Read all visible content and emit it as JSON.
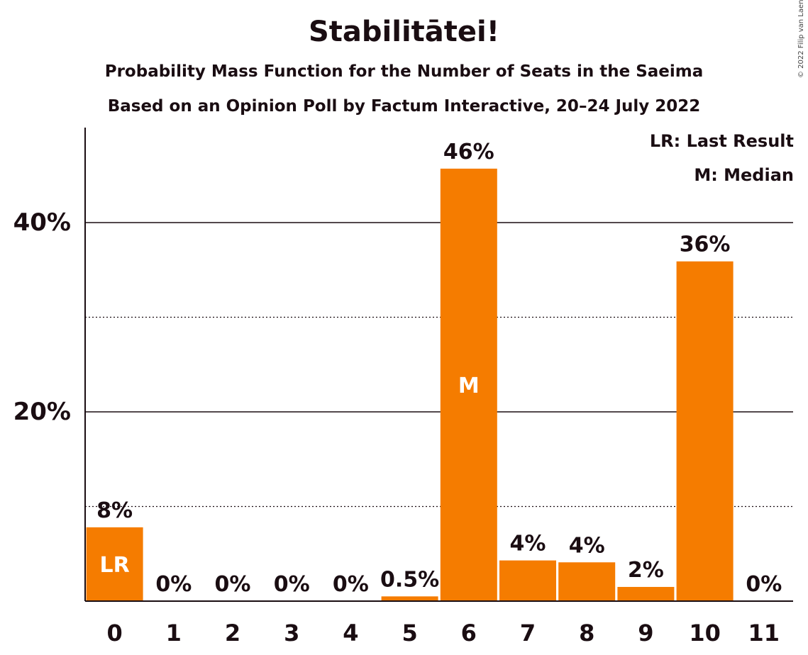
{
  "chart_data": {
    "type": "bar",
    "title": "Stabilitātei!",
    "subtitle_lines": [
      "Probability Mass Function for the Number of Seats in the Saeima",
      "Based on an Opinion Poll by Factum Interactive, 20–24 July 2022"
    ],
    "copyright": "© 2022 Filip van Laenen",
    "categories": [
      "0",
      "1",
      "2",
      "3",
      "4",
      "5",
      "6",
      "7",
      "8",
      "9",
      "10",
      "11"
    ],
    "values": [
      7.8,
      0,
      0,
      0,
      0,
      0.5,
      45.7,
      4.3,
      4.1,
      1.5,
      35.9,
      0
    ],
    "data_labels": [
      "8%",
      "0%",
      "0%",
      "0%",
      "0%",
      "0.5%",
      "46%",
      "4%",
      "4%",
      "2%",
      "36%",
      "0%"
    ],
    "bar_markers": [
      {
        "index": 0,
        "label": "LR"
      },
      {
        "index": 6,
        "label": "M"
      }
    ],
    "ylim": [
      0,
      50
    ],
    "y_ticks": [
      {
        "value": 20,
        "label": "20%"
      },
      {
        "value": 40,
        "label": "40%"
      }
    ],
    "minor_gridlines": [
      10,
      30
    ],
    "legend": [
      "LR: Last Result",
      "M: Median"
    ],
    "legend_position": "top-right",
    "bar_color": "#f57c00",
    "text_color": "#1a0d12"
  }
}
